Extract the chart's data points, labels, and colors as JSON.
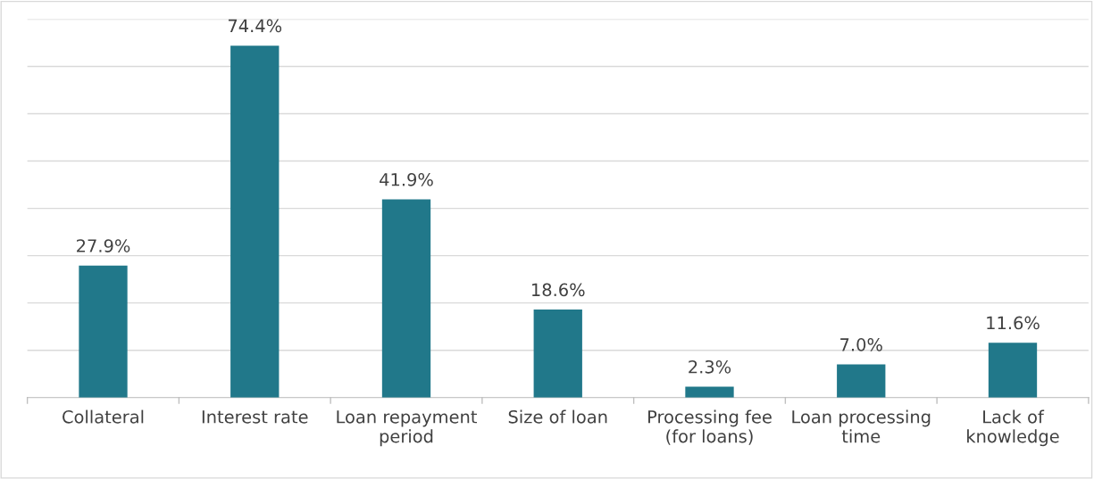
{
  "chart_data": {
    "type": "bar",
    "categories": [
      "Collateral",
      "Interest rate",
      "Loan repayment\nperiod",
      "Size of loan",
      "Processing fee\n(for loans)",
      "Loan processing\ntime",
      "Lack of\nknowledge"
    ],
    "values": [
      27.9,
      74.4,
      41.9,
      18.6,
      2.3,
      7.0,
      11.6
    ],
    "value_labels": [
      "27.9%",
      "74.4%",
      "41.9%",
      "18.6%",
      "2.3%",
      "7.0%",
      "11.6%"
    ],
    "color": "#21788a",
    "ylim": [
      0,
      80
    ],
    "yticks": [
      {
        "value": 0,
        "label": null
      },
      {
        "value": 10,
        "label": null
      },
      {
        "value": 20,
        "label": null
      },
      {
        "value": 30,
        "label": null
      },
      {
        "value": 40,
        "label": null
      },
      {
        "value": 50,
        "label": null
      },
      {
        "value": 60,
        "label": null
      },
      {
        "value": 70,
        "label": null
      },
      {
        "value": 80,
        "label": null
      }
    ],
    "tick_labels": "x",
    "grid": "y"
  }
}
